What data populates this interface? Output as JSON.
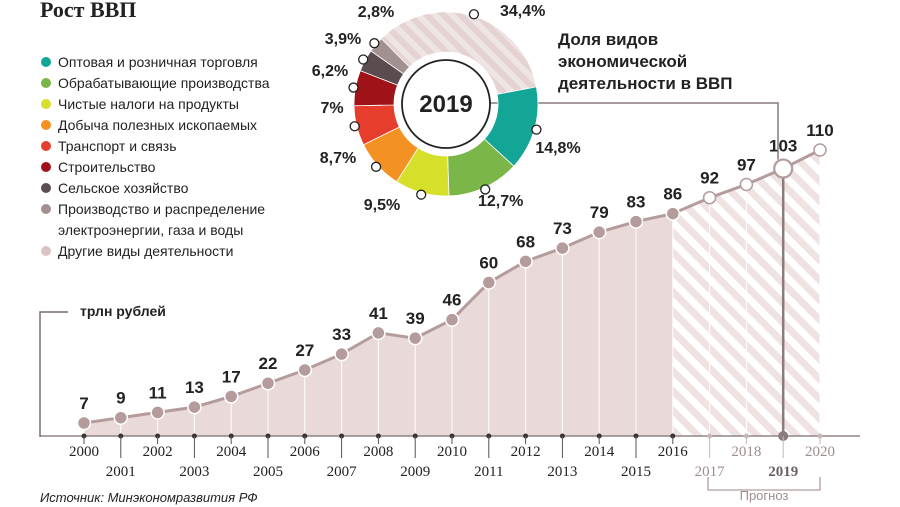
{
  "title": "Рост ВВП",
  "source": "Источник: Минэкономразвития РФ",
  "unit_label": "трлн рублей",
  "forecast_label": "Прогноз",
  "colors": {
    "area": "#ead9d9",
    "line": "#b49c9d",
    "hatch": "#f1e5e5",
    "text": "#222222",
    "muted": "#a08c8c",
    "axis": "#7a6e6e"
  },
  "chart_data": [
    {
      "type": "area",
      "title": "Рост ВВП",
      "ylabel": "трлн рублей",
      "categories": [
        "2000",
        "2001",
        "2002",
        "2003",
        "2004",
        "2005",
        "2006",
        "2007",
        "2008",
        "2009",
        "2010",
        "2011",
        "2012",
        "2013",
        "2014",
        "2015",
        "2016",
        "2017",
        "2018",
        "2019",
        "2020"
      ],
      "values": [
        7,
        9,
        11,
        13,
        17,
        22,
        27,
        33,
        41,
        39,
        46,
        60,
        68,
        73,
        79,
        83,
        86,
        92,
        97,
        103,
        110
      ],
      "forecast_from": "2017",
      "highlight": "2019",
      "annotation": "Прогноз"
    },
    {
      "type": "pie",
      "title": "Доля видов экономической деятельности в ВВП",
      "center_label": "2019",
      "slices": [
        {
          "name": "Оптовая и розничная торговля",
          "value": 14.8,
          "label": "14,8%",
          "color": "#13a596"
        },
        {
          "name": "Обрабатывающие производства",
          "value": 12.7,
          "label": "12,7%",
          "color": "#7ab648"
        },
        {
          "name": "Чистые налоги на продукты",
          "value": 9.5,
          "label": "9,5%",
          "color": "#d6e02a"
        },
        {
          "name": "Добыча полезных ископаемых",
          "value": 8.7,
          "label": "8,7%",
          "color": "#f39122"
        },
        {
          "name": "Транспорт и связь",
          "value": 7,
          "label": "7%",
          "color": "#e63d2c"
        },
        {
          "name": "Строительство",
          "value": 6.2,
          "label": "6,2%",
          "color": "#9e1218"
        },
        {
          "name": "Сельское хозяйство",
          "value": 3.9,
          "label": "3,9%",
          "color": "#5b4d4f"
        },
        {
          "name": "Производство и распределение электроэнергии, газа и воды",
          "value": 2.8,
          "label": "2,8%",
          "color": "#a39091"
        },
        {
          "name": "Другие виды деятельности",
          "value": 34.4,
          "label": "34,4%",
          "color": "#dcc3c3"
        }
      ]
    }
  ],
  "legend": [
    {
      "label": "Оптовая и розничная торговля",
      "color": "#13a596"
    },
    {
      "label": "Обрабатывающие производства",
      "color": "#7ab648"
    },
    {
      "label": "Чистые налоги на продукты",
      "color": "#d6e02a"
    },
    {
      "label": "Добыча полезных ископаемых",
      "color": "#f39122"
    },
    {
      "label": "Транспорт и связь",
      "color": "#e63d2c"
    },
    {
      "label": "Строительство",
      "color": "#9e1218"
    },
    {
      "label": "Сельское хозяйство",
      "color": "#5b4d4f"
    },
    {
      "label": "Производство и распределение",
      "label2": "электроэнергии, газа и воды",
      "color": "#a39091"
    },
    {
      "label": "Другие виды деятельности",
      "color": "#dcc3c3"
    }
  ],
  "donut_title": [
    "Доля видов",
    "экономической",
    "деятельности в ВВП"
  ]
}
